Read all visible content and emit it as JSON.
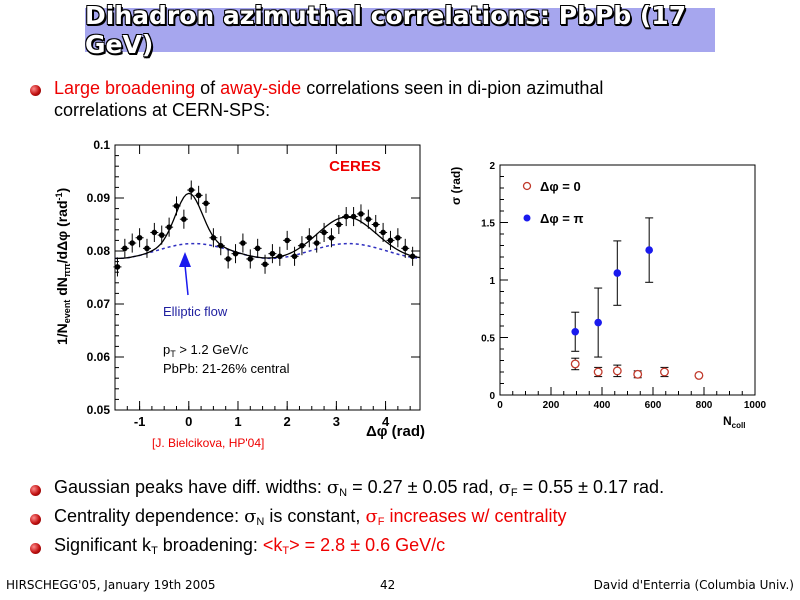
{
  "slide": {
    "title": "Dihadron azimuthal correlations: PbPb (17 GeV)",
    "bullets": [
      {
        "segments": [
          {
            "text": "Large broadening",
            "color": "#ee0000"
          },
          {
            "text": " of ",
            "color": "#000000"
          },
          {
            "text": "away-side",
            "color": "#ee0000"
          },
          {
            "text": " correlations seen in di-pion azimuthal",
            "color": "#000000"
          }
        ],
        "line2": "correlations at CERN-SPS:"
      },
      {
        "intro": "Gaussian peaks have diff. widths: ",
        "sigma": "σ",
        "subN": "N",
        "eqN": " = 0.27 ±  0.05 rad, ",
        "subF": "F",
        "eqF": " = 0.55 ±  0.17 rad."
      },
      {
        "intro": "Centrality dependence: ",
        "sigma": "σ",
        "subN": "N",
        "mid": " is constant, ",
        "subF": "F",
        "tail": " increases w/ centrality"
      },
      {
        "intro": "Significant k",
        "subT": "T",
        "mid": " broadening: ",
        "red_a": "<k",
        "red_b": "> = 2.8 ± 0.6 GeV/c"
      }
    ],
    "footer": {
      "left": "HIRSCHEGG'05, January 19th 2005",
      "page": "42",
      "right": "David d'Enterria (Columbia Univ.)"
    }
  },
  "colors": {
    "accent_red": "#ee0000",
    "title_bar": "#a6a6ee",
    "note_blue": "#2020a0"
  },
  "chart_data": [
    {
      "type": "scatter",
      "title": "CERES",
      "xlabel": "Δφ (rad)",
      "ylabel": "1/N_event dN_ππ/dΔφ (rad⁻¹)",
      "xlim": [
        -1.5,
        4.7
      ],
      "ylim": [
        0.05,
        0.1
      ],
      "xticks": [
        "-1",
        "0",
        "1",
        "2",
        "3",
        "4"
      ],
      "yticks": [
        "0.05",
        "0.06",
        "0.07",
        "0.08",
        "0.09",
        "0.1"
      ],
      "annotations": [
        "Elliptic flow",
        "p_T > 1.2 GeV/c",
        "PbPb: 21-26% central"
      ],
      "citation": "[J. Bielcikova, HP'04]",
      "series": [
        {
          "name": "data",
          "x": [
            -1.45,
            -1.3,
            -1.15,
            -1.0,
            -0.85,
            -0.7,
            -0.55,
            -0.4,
            -0.25,
            -0.1,
            0.05,
            0.2,
            0.35,
            0.5,
            0.65,
            0.8,
            0.95,
            1.1,
            1.25,
            1.4,
            1.55,
            1.7,
            1.85,
            2.0,
            2.15,
            2.3,
            2.45,
            2.6,
            2.75,
            2.9,
            3.05,
            3.2,
            3.35,
            3.5,
            3.65,
            3.8,
            3.95,
            4.1,
            4.25,
            4.4,
            4.55
          ],
          "y": [
            0.077,
            0.0805,
            0.0815,
            0.0825,
            0.0805,
            0.0835,
            0.083,
            0.0845,
            0.0885,
            0.086,
            0.0915,
            0.0905,
            0.089,
            0.0825,
            0.081,
            0.0785,
            0.0795,
            0.0815,
            0.0785,
            0.0805,
            0.0775,
            0.0795,
            0.079,
            0.082,
            0.079,
            0.081,
            0.0825,
            0.0815,
            0.0835,
            0.0825,
            0.085,
            0.0865,
            0.0865,
            0.087,
            0.086,
            0.085,
            0.0835,
            0.082,
            0.0825,
            0.0805,
            0.079
          ],
          "yerr": 0.0018
        },
        {
          "name": "fit",
          "style": "solid"
        },
        {
          "name": "flow",
          "style": "dashed"
        }
      ]
    },
    {
      "type": "scatter",
      "xlabel": "N_coll",
      "ylabel": "σ (rad)",
      "xlim": [
        0,
        1000
      ],
      "ylim": [
        0,
        2
      ],
      "xticks": [
        "0",
        "200",
        "400",
        "600",
        "800",
        "1000"
      ],
      "yticks": [
        "0",
        "0.5",
        "1",
        "1.5",
        "2"
      ],
      "series": [
        {
          "name": "Δφ = 0",
          "marker": "open-circle",
          "color": "#c0392b",
          "x": [
            295,
            385,
            460,
            540,
            645,
            780
          ],
          "y": [
            0.27,
            0.2,
            0.21,
            0.18,
            0.2,
            0.17
          ],
          "err": [
            0.05,
            0.04,
            0.05,
            0.03,
            0.04,
            0.0
          ]
        },
        {
          "name": "Δφ = π",
          "marker": "filled-circle",
          "color": "#1a1aee",
          "x": [
            295,
            385,
            460,
            585
          ],
          "y": [
            0.55,
            0.63,
            1.06,
            1.26
          ],
          "err": [
            0.17,
            0.3,
            0.28,
            0.28
          ]
        }
      ]
    }
  ]
}
